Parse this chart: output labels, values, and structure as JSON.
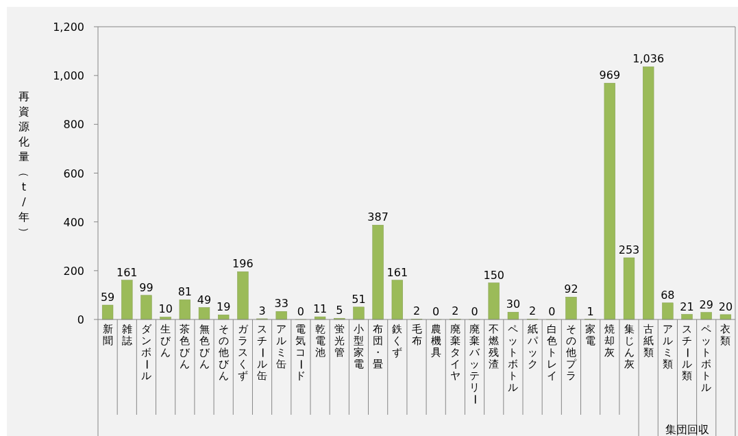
{
  "chart_data": {
    "type": "bar",
    "ylabel": "再資源化量（t/年）",
    "categories": [
      "新聞",
      "雑誌",
      "ダンボール",
      "生びん",
      "茶色びん",
      "無色びん",
      "その他びん",
      "ガラスくず",
      "スチール缶",
      "アルミ缶",
      "電気コード",
      "乾電池",
      "蛍光管",
      "小型家電",
      "布団・畳",
      "鉄くず",
      "毛布",
      "農機具",
      "廃棄タイヤ",
      "廃棄バッテリー",
      "不燃残渣",
      "ペットボトル",
      "紙パック",
      "白色トレイ",
      "その他プラ",
      "家電",
      "焼却灰",
      "集じん灰",
      "古紙類",
      "アルミ類",
      "スチール類",
      "ペットボトル",
      "衣類"
    ],
    "values": [
      59,
      161,
      99,
      10,
      81,
      49,
      19,
      196,
      3,
      33,
      0,
      11,
      5,
      51,
      387,
      161,
      2,
      0,
      2,
      0,
      150,
      30,
      2,
      0,
      92,
      1,
      969,
      253,
      1036,
      68,
      21,
      29,
      20
    ],
    "value_labels": [
      "59",
      "161",
      "99",
      "10",
      "81",
      "49",
      "19",
      "196",
      "3",
      "33",
      "0",
      "11",
      "5",
      "51",
      "387",
      "161",
      "2",
      "0",
      "2",
      "0",
      "150",
      "30",
      "2",
      "0",
      "92",
      "1",
      "969",
      "253",
      "1,036",
      "68",
      "21",
      "29",
      "20"
    ],
    "color": "#9bbb59",
    "ylim": [
      0,
      1200
    ],
    "yticks": [
      0,
      200,
      400,
      600,
      800,
      {
        "value": 1000,
        "label": "1,000"
      },
      {
        "value": 1200,
        "label": "1,200"
      }
    ],
    "annotations": [
      "集団回収"
    ],
    "grid": false
  }
}
